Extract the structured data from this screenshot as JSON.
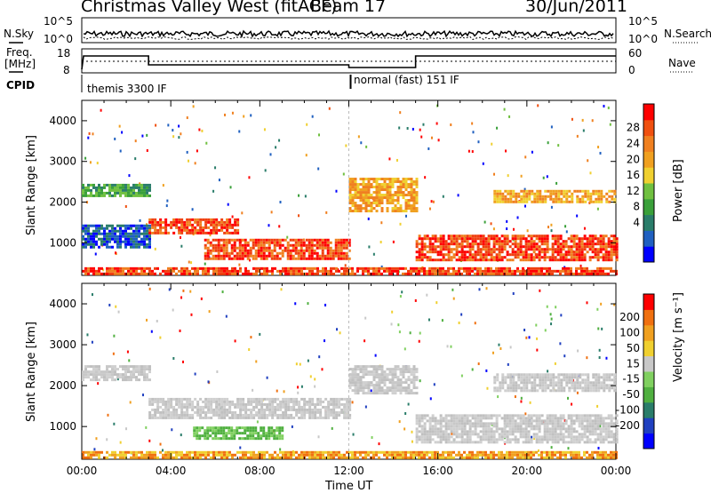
{
  "header": {
    "station": "Christmas Valley West (fitACF)",
    "beam": "Beam 17",
    "date": "30/Jun/2011"
  },
  "top_panels": {
    "nsky_label": "N.Sky",
    "nsky_ticks": [
      "10^5",
      "10^0"
    ],
    "nsearch_label": "N.Search",
    "nsearch_ticks": [
      "10^5",
      "10^0"
    ],
    "freq_label_1": "Freq.",
    "freq_label_2": "[MHz]",
    "freq_ticks": [
      "18",
      "8"
    ],
    "nave_label": "Nave",
    "nave_ticks": [
      "60",
      "0"
    ],
    "cpid_label": "CPID",
    "cpid_modes": [
      "themis 3300 IF",
      "normal (fast) 151 IF"
    ]
  },
  "chart_data": [
    {
      "type": "heatmap",
      "name": "power",
      "ylabel": "Slant Range [km]",
      "yticks": [
        1000,
        2000,
        3000,
        4000
      ],
      "ylim": [
        200,
        4500
      ],
      "xlim_hours": [
        0,
        24
      ],
      "colorbar": {
        "label": "Power [dB]",
        "ticks": [
          "28",
          "24",
          "20",
          "16",
          "12",
          "8",
          "4"
        ],
        "colors": [
          "#0000ff",
          "#2060c0",
          "#2a7d6a",
          "#3aa03a",
          "#70c040",
          "#f0d030",
          "#f0a020",
          "#f08020",
          "#f05010",
          "#ff0000"
        ]
      },
      "features": [
        {
          "t0": 0.0,
          "t1": 3.0,
          "r0": 2150,
          "r1": 2450,
          "level": "green"
        },
        {
          "t0": 0.0,
          "t1": 3.0,
          "r0": 900,
          "r1": 1450,
          "level": "blue"
        },
        {
          "t0": 3.0,
          "t1": 7.0,
          "r0": 1250,
          "r1": 1600,
          "level": "red"
        },
        {
          "t0": 5.5,
          "t1": 12.0,
          "r0": 600,
          "r1": 1100,
          "level": "red"
        },
        {
          "t0": 0.0,
          "t1": 24.0,
          "r0": 250,
          "r1": 400,
          "level": "red"
        },
        {
          "t0": 12.0,
          "t1": 15.0,
          "r0": 1800,
          "r1": 2600,
          "level": "orange"
        },
        {
          "t0": 15.0,
          "t1": 24.0,
          "r0": 600,
          "r1": 1200,
          "level": "red"
        },
        {
          "t0": 18.5,
          "t1": 24.0,
          "r0": 2000,
          "r1": 2300,
          "level": "orange"
        }
      ]
    },
    {
      "type": "heatmap",
      "name": "velocity",
      "ylabel": "Slant Range [km]",
      "yticks": [
        1000,
        2000,
        3000,
        4000
      ],
      "ylim": [
        200,
        4500
      ],
      "xlim_hours": [
        0,
        24
      ],
      "colorbar": {
        "label": "Velocity [m s⁻¹]",
        "ticks": [
          "200",
          "100",
          "50",
          "15",
          "-15",
          "-50",
          "-100",
          "-200"
        ],
        "colors": [
          "#0000ff",
          "#2040c0",
          "#2a7d6a",
          "#50b040",
          "#80d060",
          "#c8c8c8",
          "#f0d030",
          "#f0a020",
          "#f07010",
          "#ff0000"
        ]
      },
      "features": [
        {
          "t0": 0.0,
          "t1": 3.0,
          "r0": 2150,
          "r1": 2500,
          "level": "grey"
        },
        {
          "t0": 3.0,
          "t1": 12.0,
          "r0": 1200,
          "r1": 1700,
          "level": "grey"
        },
        {
          "t0": 5.0,
          "t1": 9.0,
          "r0": 700,
          "r1": 1000,
          "level": "green"
        },
        {
          "t0": 0.0,
          "t1": 24.0,
          "r0": 250,
          "r1": 400,
          "level": "orange"
        },
        {
          "t0": 12.0,
          "t1": 15.0,
          "r0": 1800,
          "r1": 2500,
          "level": "grey"
        },
        {
          "t0": 15.0,
          "t1": 24.0,
          "r0": 600,
          "r1": 1300,
          "level": "grey"
        },
        {
          "t0": 18.5,
          "t1": 24.0,
          "r0": 1900,
          "r1": 2300,
          "level": "grey"
        }
      ]
    }
  ],
  "x_axis": {
    "ticks": [
      "00:00",
      "04:00",
      "08:00",
      "12:00",
      "16:00",
      "20:00",
      "00:00"
    ],
    "label": "Time UT"
  }
}
